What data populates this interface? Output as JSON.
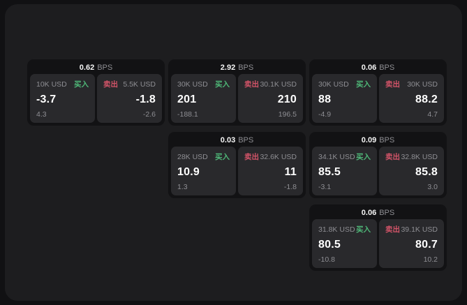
{
  "colors": {
    "outer_bg": "#111113",
    "panel_bg": "#1d1d1f",
    "card_bg": "#121214",
    "tile_bg": "#29292c",
    "text_primary": "#f5f5f5",
    "text_muted": "#8e8e93",
    "buy_green": "#4fb878",
    "sell_red": "#d25468"
  },
  "labels": {
    "bps_suffix": "BPS",
    "buy": "买入",
    "sell": "卖出"
  },
  "cards": [
    {
      "bps": "0.62",
      "col": 1,
      "row": 1,
      "buy": {
        "notional": "10K USD",
        "price": "-3.7",
        "delta": "4.3"
      },
      "sell": {
        "notional": "5.5K USD",
        "price": "-1.8",
        "delta": "-2.6"
      }
    },
    {
      "bps": "2.92",
      "col": 2,
      "row": 1,
      "buy": {
        "notional": "30K USD",
        "price": "201",
        "delta": "-188.1"
      },
      "sell": {
        "notional": "30.1K USD",
        "price": "210",
        "delta": "196.5"
      }
    },
    {
      "bps": "0.06",
      "col": 3,
      "row": 1,
      "buy": {
        "notional": "30K USD",
        "price": "88",
        "delta": "-4.9"
      },
      "sell": {
        "notional": "30K USD",
        "price": "88.2",
        "delta": "4.7"
      }
    },
    {
      "bps": "0.03",
      "col": 2,
      "row": 2,
      "buy": {
        "notional": "28K USD",
        "price": "10.9",
        "delta": "1.3"
      },
      "sell": {
        "notional": "32.6K USD",
        "price": "11",
        "delta": "-1.8"
      }
    },
    {
      "bps": "0.09",
      "col": 3,
      "row": 2,
      "buy": {
        "notional": "34.1K USD",
        "price": "85.5",
        "delta": "-3.1"
      },
      "sell": {
        "notional": "32.8K USD",
        "price": "85.8",
        "delta": "3.0"
      }
    },
    {
      "bps": "0.06",
      "col": 3,
      "row": 3,
      "buy": {
        "notional": "31.8K USD",
        "price": "80.5",
        "delta": "-10.8"
      },
      "sell": {
        "notional": "39.1K USD",
        "price": "80.7",
        "delta": "10.2"
      }
    }
  ]
}
